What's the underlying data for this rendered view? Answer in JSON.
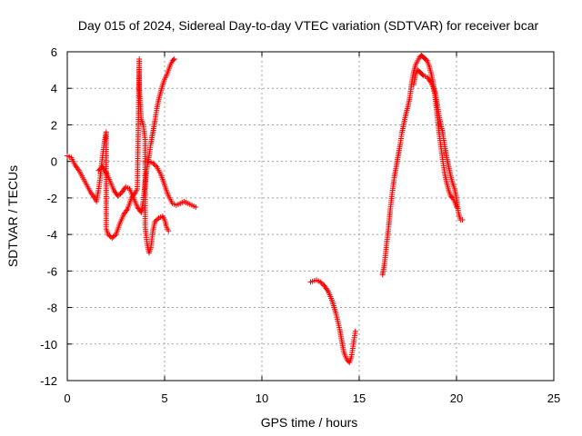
{
  "chart_data": {
    "type": "scatter",
    "title": "Day 015 of 2024, Sidereal Day-to-day VTEC variation (SDTVAR) for receiver bcar",
    "xlabel": "GPS time / hours",
    "ylabel": "SDTVAR / TECUs",
    "xlim": [
      0,
      25
    ],
    "ylim": [
      -12,
      6
    ],
    "xticks": [
      0,
      5,
      10,
      15,
      20,
      25
    ],
    "yticks": [
      -12,
      -10,
      -8,
      -6,
      -4,
      -2,
      0,
      2,
      4,
      6
    ],
    "grid": true,
    "marker": "plus",
    "color": "#ff0000",
    "series": [
      {
        "points": [
          [
            0.0,
            0.3
          ],
          [
            0.2,
            0.2
          ],
          [
            0.4,
            -0.2
          ],
          [
            0.6,
            -0.5
          ],
          [
            0.8,
            -0.9
          ],
          [
            1.0,
            -1.3
          ],
          [
            1.2,
            -1.7
          ],
          [
            1.4,
            -2.0
          ],
          [
            1.5,
            -2.2
          ],
          [
            1.6,
            -1.6
          ],
          [
            1.7,
            -0.8
          ],
          [
            1.8,
            0.2
          ],
          [
            1.9,
            1.0
          ],
          [
            2.0,
            1.6
          ],
          [
            2.0,
            -3.7
          ],
          [
            2.1,
            -4.0
          ],
          [
            2.3,
            -4.2
          ],
          [
            2.5,
            -4.0
          ],
          [
            2.7,
            -3.4
          ],
          [
            2.9,
            -2.9
          ],
          [
            3.1,
            -2.6
          ],
          [
            3.3,
            -2.0
          ],
          [
            3.5,
            -1.7
          ],
          [
            3.6,
            -1.5
          ],
          [
            3.7,
            5.6
          ],
          [
            3.7,
            4.0
          ],
          [
            3.8,
            2.3
          ],
          [
            3.9,
            2.0
          ],
          [
            4.0,
            1.2
          ],
          [
            4.0,
            -3.6
          ],
          [
            4.1,
            -4.5
          ],
          [
            4.2,
            -5.0
          ],
          [
            4.3,
            -4.7
          ],
          [
            4.4,
            -3.8
          ],
          [
            4.5,
            -3.3
          ],
          [
            4.7,
            -3.1
          ],
          [
            4.9,
            -3.0
          ],
          [
            5.0,
            -3.2
          ],
          [
            5.1,
            -3.6
          ],
          [
            5.2,
            -3.8
          ]
        ]
      },
      {
        "points": [
          [
            1.6,
            -0.5
          ],
          [
            1.8,
            -0.3
          ],
          [
            2.0,
            -0.6
          ],
          [
            2.2,
            -1.1
          ],
          [
            2.4,
            -1.6
          ],
          [
            2.6,
            -1.9
          ],
          [
            2.8,
            -1.7
          ],
          [
            3.0,
            -1.4
          ],
          [
            3.2,
            -1.5
          ],
          [
            3.4,
            -2.0
          ],
          [
            3.6,
            -2.5
          ],
          [
            3.8,
            -2.8
          ],
          [
            3.9,
            -2.2
          ],
          [
            4.0,
            -1.2
          ],
          [
            4.1,
            -0.3
          ],
          [
            4.2,
            0.3
          ],
          [
            4.3,
            1.0
          ],
          [
            4.4,
            1.6
          ],
          [
            4.5,
            2.2
          ],
          [
            4.6,
            2.9
          ],
          [
            4.7,
            3.4
          ],
          [
            4.8,
            3.8
          ],
          [
            4.9,
            4.2
          ],
          [
            5.0,
            4.5
          ],
          [
            5.1,
            4.7
          ],
          [
            5.2,
            5.0
          ],
          [
            5.3,
            5.3
          ],
          [
            5.4,
            5.5
          ],
          [
            5.5,
            5.6
          ]
        ]
      },
      {
        "points": [
          [
            4.0,
            0.0
          ],
          [
            4.2,
            0.0
          ],
          [
            4.4,
            -0.1
          ],
          [
            4.6,
            -0.3
          ],
          [
            4.8,
            -0.7
          ],
          [
            5.0,
            -1.3
          ],
          [
            5.2,
            -1.9
          ],
          [
            5.4,
            -2.3
          ],
          [
            5.6,
            -2.4
          ],
          [
            5.8,
            -2.3
          ],
          [
            6.0,
            -2.2
          ],
          [
            6.2,
            -2.3
          ],
          [
            6.4,
            -2.4
          ],
          [
            6.6,
            -2.5
          ]
        ]
      },
      {
        "points": [
          [
            12.5,
            -6.6
          ],
          [
            12.8,
            -6.5
          ],
          [
            13.0,
            -6.6
          ],
          [
            13.2,
            -6.8
          ],
          [
            13.4,
            -7.1
          ],
          [
            13.6,
            -7.6
          ],
          [
            13.8,
            -8.3
          ],
          [
            14.0,
            -9.2
          ],
          [
            14.1,
            -9.8
          ],
          [
            14.2,
            -10.4
          ],
          [
            14.3,
            -10.7
          ],
          [
            14.4,
            -10.9
          ],
          [
            14.5,
            -11.0
          ],
          [
            14.6,
            -10.7
          ],
          [
            14.7,
            -10.0
          ],
          [
            14.8,
            -9.3
          ]
        ]
      },
      {
        "points": [
          [
            16.2,
            -6.2
          ],
          [
            16.3,
            -5.6
          ],
          [
            16.4,
            -4.6
          ],
          [
            16.5,
            -3.7
          ],
          [
            16.6,
            -2.6
          ],
          [
            16.7,
            -1.7
          ],
          [
            16.8,
            -0.9
          ],
          [
            16.9,
            -0.3
          ],
          [
            17.0,
            0.3
          ],
          [
            17.1,
            0.9
          ],
          [
            17.2,
            1.6
          ],
          [
            17.3,
            2.1
          ],
          [
            17.4,
            2.6
          ],
          [
            17.5,
            3.0
          ],
          [
            17.6,
            3.5
          ],
          [
            17.7,
            4.3
          ],
          [
            17.8,
            4.9
          ],
          [
            17.9,
            5.3
          ],
          [
            18.0,
            5.5
          ],
          [
            18.1,
            5.7
          ],
          [
            18.2,
            5.8
          ],
          [
            18.3,
            5.7
          ],
          [
            18.4,
            5.6
          ],
          [
            18.5,
            5.5
          ],
          [
            18.6,
            5.2
          ],
          [
            18.7,
            4.8
          ],
          [
            18.8,
            4.3
          ],
          [
            18.9,
            3.5
          ],
          [
            19.0,
            2.6
          ],
          [
            19.1,
            1.6
          ],
          [
            19.2,
            0.8
          ],
          [
            19.3,
            0.0
          ],
          [
            19.4,
            -0.7
          ],
          [
            19.5,
            -1.2
          ],
          [
            19.6,
            -1.6
          ],
          [
            19.7,
            -1.9
          ],
          [
            19.8,
            -2.0
          ],
          [
            19.9,
            -2.2
          ],
          [
            20.0,
            -2.5
          ]
        ]
      },
      {
        "points": [
          [
            17.8,
            4.2
          ],
          [
            17.9,
            4.8
          ],
          [
            18.0,
            5.0
          ],
          [
            18.1,
            4.9
          ],
          [
            18.2,
            4.8
          ],
          [
            18.3,
            4.7
          ],
          [
            18.5,
            4.6
          ],
          [
            18.7,
            4.3
          ],
          [
            18.9,
            3.8
          ],
          [
            19.0,
            3.2
          ],
          [
            19.1,
            2.5
          ],
          [
            19.2,
            2.0
          ],
          [
            19.3,
            1.5
          ],
          [
            19.4,
            0.8
          ],
          [
            19.5,
            0.2
          ],
          [
            19.6,
            -0.3
          ],
          [
            19.7,
            -0.8
          ],
          [
            19.8,
            -1.2
          ],
          [
            19.9,
            -1.5
          ],
          [
            20.0,
            -2.0
          ],
          [
            20.1,
            -2.8
          ],
          [
            20.2,
            -3.2
          ],
          [
            20.3,
            -3.2
          ]
        ]
      }
    ]
  }
}
